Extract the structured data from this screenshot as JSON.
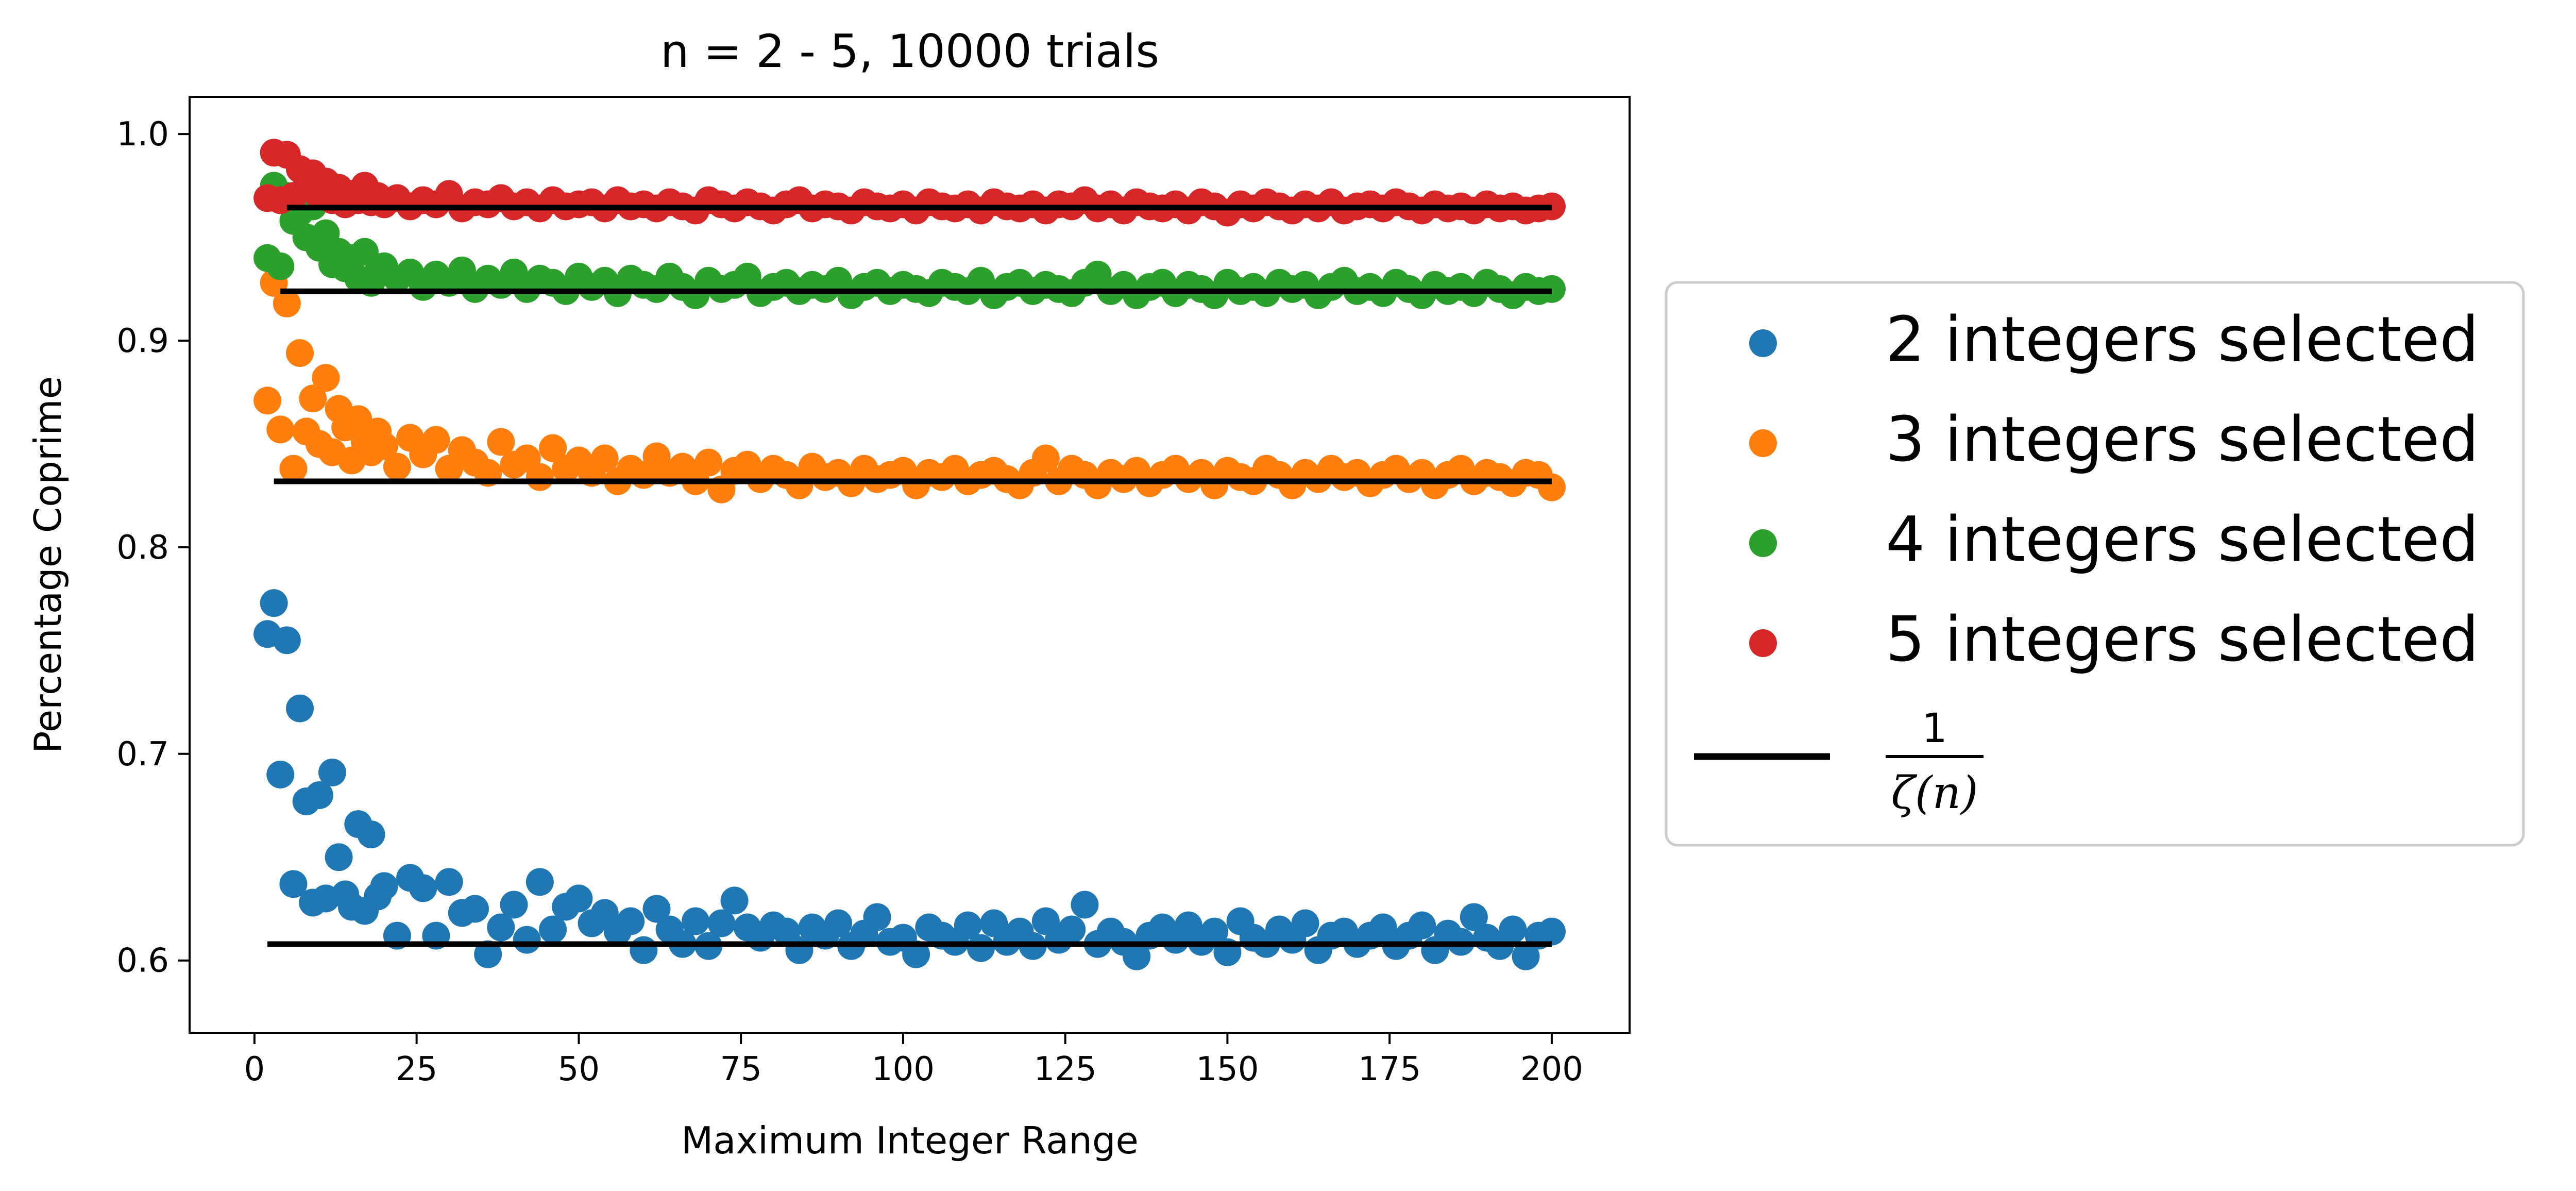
{
  "chart_data": {
    "type": "scatter",
    "title": "n = 2 - 5, 10000 trials",
    "xlabel": "Maximum Integer Range",
    "ylabel": "Percentage Coprime",
    "xlim": [
      -10,
      212
    ],
    "ylim": [
      0.565,
      1.018
    ],
    "xticks": [
      0,
      25,
      50,
      75,
      100,
      125,
      150,
      175,
      200
    ],
    "xtick_labels": [
      "0",
      "25",
      "50",
      "75",
      "100",
      "125",
      "150",
      "175",
      "200"
    ],
    "yticks": [
      0.6,
      0.7,
      0.8,
      0.9,
      1.0
    ],
    "ytick_labels": [
      "0.6",
      "0.7",
      "0.8",
      "0.9",
      "1.0"
    ],
    "grid": false,
    "legend_position": "outside-right",
    "series": [
      {
        "name": "2 integers selected",
        "color": "#1f77b4",
        "x": [
          2,
          3,
          4,
          5,
          6,
          7,
          8,
          9,
          10,
          11,
          12,
          13,
          14,
          15,
          16,
          17,
          18,
          19,
          20,
          22,
          24,
          26,
          28,
          30,
          32,
          34,
          36,
          38,
          40,
          42,
          44,
          46,
          48,
          50,
          52,
          54,
          56,
          58,
          60,
          62,
          64,
          66,
          68,
          70,
          72,
          74,
          76,
          78,
          80,
          82,
          84,
          86,
          88,
          90,
          92,
          94,
          96,
          98,
          100,
          102,
          104,
          106,
          108,
          110,
          112,
          114,
          116,
          118,
          120,
          122,
          124,
          126,
          128,
          130,
          132,
          134,
          136,
          138,
          140,
          142,
          144,
          146,
          148,
          150,
          152,
          154,
          156,
          158,
          160,
          162,
          164,
          166,
          168,
          170,
          172,
          174,
          176,
          178,
          180,
          182,
          184,
          186,
          188,
          190,
          192,
          194,
          196,
          198,
          200
        ],
        "y": [
          0.758,
          0.773,
          0.69,
          0.755,
          0.637,
          0.722,
          0.677,
          0.628,
          0.68,
          0.63,
          0.691,
          0.65,
          0.632,
          0.626,
          0.666,
          0.624,
          0.661,
          0.631,
          0.636,
          0.612,
          0.64,
          0.635,
          0.612,
          0.638,
          0.623,
          0.625,
          0.603,
          0.616,
          0.627,
          0.61,
          0.638,
          0.615,
          0.626,
          0.63,
          0.618,
          0.623,
          0.614,
          0.619,
          0.605,
          0.625,
          0.615,
          0.608,
          0.619,
          0.607,
          0.618,
          0.629,
          0.616,
          0.611,
          0.617,
          0.614,
          0.605,
          0.616,
          0.612,
          0.618,
          0.607,
          0.613,
          0.621,
          0.609,
          0.611,
          0.603,
          0.616,
          0.612,
          0.609,
          0.617,
          0.606,
          0.618,
          0.609,
          0.614,
          0.607,
          0.619,
          0.61,
          0.615,
          0.627,
          0.608,
          0.614,
          0.609,
          0.602,
          0.612,
          0.616,
          0.61,
          0.617,
          0.609,
          0.614,
          0.604,
          0.619,
          0.611,
          0.608,
          0.615,
          0.61,
          0.618,
          0.605,
          0.612,
          0.614,
          0.608,
          0.612,
          0.616,
          0.607,
          0.612,
          0.617,
          0.605,
          0.613,
          0.609,
          0.621,
          0.611,
          0.607,
          0.615,
          0.602,
          0.612,
          0.614
        ]
      },
      {
        "name": "3 integers selected",
        "color": "#ff7f0e",
        "x": [
          2,
          3,
          4,
          5,
          6,
          7,
          8,
          9,
          10,
          11,
          12,
          13,
          14,
          15,
          16,
          17,
          18,
          19,
          20,
          22,
          24,
          26,
          28,
          30,
          32,
          34,
          36,
          38,
          40,
          42,
          44,
          46,
          48,
          50,
          52,
          54,
          56,
          58,
          60,
          62,
          64,
          66,
          68,
          70,
          72,
          74,
          76,
          78,
          80,
          82,
          84,
          86,
          88,
          90,
          92,
          94,
          96,
          98,
          100,
          102,
          104,
          106,
          108,
          110,
          112,
          114,
          116,
          118,
          120,
          122,
          124,
          126,
          128,
          130,
          132,
          134,
          136,
          138,
          140,
          142,
          144,
          146,
          148,
          150,
          152,
          154,
          156,
          158,
          160,
          162,
          164,
          166,
          168,
          170,
          172,
          174,
          176,
          178,
          180,
          182,
          184,
          186,
          188,
          190,
          192,
          194,
          196,
          198,
          200
        ],
        "y": [
          0.871,
          0.928,
          0.857,
          0.918,
          0.838,
          0.894,
          0.856,
          0.872,
          0.85,
          0.882,
          0.846,
          0.867,
          0.858,
          0.842,
          0.862,
          0.851,
          0.846,
          0.856,
          0.849,
          0.839,
          0.853,
          0.845,
          0.852,
          0.838,
          0.847,
          0.841,
          0.836,
          0.851,
          0.84,
          0.843,
          0.834,
          0.848,
          0.838,
          0.842,
          0.836,
          0.843,
          0.832,
          0.838,
          0.835,
          0.844,
          0.836,
          0.839,
          0.832,
          0.841,
          0.828,
          0.837,
          0.84,
          0.833,
          0.838,
          0.835,
          0.83,
          0.839,
          0.834,
          0.836,
          0.831,
          0.838,
          0.833,
          0.835,
          0.837,
          0.83,
          0.836,
          0.834,
          0.838,
          0.832,
          0.835,
          0.837,
          0.833,
          0.83,
          0.836,
          0.843,
          0.832,
          0.838,
          0.835,
          0.83,
          0.836,
          0.833,
          0.837,
          0.831,
          0.835,
          0.838,
          0.833,
          0.836,
          0.83,
          0.837,
          0.834,
          0.832,
          0.838,
          0.835,
          0.83,
          0.836,
          0.833,
          0.838,
          0.834,
          0.836,
          0.831,
          0.835,
          0.838,
          0.833,
          0.836,
          0.83,
          0.835,
          0.838,
          0.832,
          0.836,
          0.834,
          0.831,
          0.836,
          0.835,
          0.829
        ]
      },
      {
        "name": "4 integers selected",
        "color": "#2ca02c",
        "x": [
          2,
          3,
          4,
          5,
          6,
          7,
          8,
          9,
          10,
          11,
          12,
          13,
          14,
          15,
          16,
          17,
          18,
          19,
          20,
          22,
          24,
          26,
          28,
          30,
          32,
          34,
          36,
          38,
          40,
          42,
          44,
          46,
          48,
          50,
          52,
          54,
          56,
          58,
          60,
          62,
          64,
          66,
          68,
          70,
          72,
          74,
          76,
          78,
          80,
          82,
          84,
          86,
          88,
          90,
          92,
          94,
          96,
          98,
          100,
          102,
          104,
          106,
          108,
          110,
          112,
          114,
          116,
          118,
          120,
          122,
          124,
          126,
          128,
          130,
          132,
          134,
          136,
          138,
          140,
          142,
          144,
          146,
          148,
          150,
          152,
          154,
          156,
          158,
          160,
          162,
          164,
          166,
          168,
          170,
          172,
          174,
          176,
          178,
          180,
          182,
          184,
          186,
          188,
          190,
          192,
          194,
          196,
          198,
          200
        ],
        "y": [
          0.94,
          0.975,
          0.936,
          0.97,
          0.958,
          0.962,
          0.95,
          0.965,
          0.945,
          0.952,
          0.937,
          0.943,
          0.935,
          0.94,
          0.93,
          0.943,
          0.928,
          0.933,
          0.936,
          0.93,
          0.933,
          0.926,
          0.932,
          0.928,
          0.934,
          0.925,
          0.93,
          0.927,
          0.933,
          0.925,
          0.93,
          0.928,
          0.924,
          0.931,
          0.926,
          0.929,
          0.923,
          0.93,
          0.927,
          0.925,
          0.931,
          0.926,
          0.922,
          0.929,
          0.925,
          0.927,
          0.931,
          0.923,
          0.926,
          0.928,
          0.924,
          0.927,
          0.925,
          0.929,
          0.922,
          0.926,
          0.928,
          0.924,
          0.927,
          0.925,
          0.923,
          0.928,
          0.926,
          0.924,
          0.929,
          0.922,
          0.926,
          0.928,
          0.924,
          0.927,
          0.925,
          0.923,
          0.928,
          0.932,
          0.924,
          0.927,
          0.922,
          0.926,
          0.928,
          0.923,
          0.927,
          0.925,
          0.922,
          0.928,
          0.924,
          0.926,
          0.923,
          0.928,
          0.925,
          0.927,
          0.922,
          0.926,
          0.929,
          0.924,
          0.926,
          0.923,
          0.928,
          0.925,
          0.922,
          0.927,
          0.924,
          0.926,
          0.923,
          0.928,
          0.925,
          0.922,
          0.926,
          0.924,
          0.925
        ]
      },
      {
        "name": "5 integers selected",
        "color": "#d62728",
        "x": [
          2,
          3,
          4,
          5,
          6,
          7,
          8,
          9,
          10,
          11,
          12,
          13,
          14,
          15,
          16,
          17,
          18,
          19,
          20,
          22,
          24,
          26,
          28,
          30,
          32,
          34,
          36,
          38,
          40,
          42,
          44,
          46,
          48,
          50,
          52,
          54,
          56,
          58,
          60,
          62,
          64,
          66,
          68,
          70,
          72,
          74,
          76,
          78,
          80,
          82,
          84,
          86,
          88,
          90,
          92,
          94,
          96,
          98,
          100,
          102,
          104,
          106,
          108,
          110,
          112,
          114,
          116,
          118,
          120,
          122,
          124,
          126,
          128,
          130,
          132,
          134,
          136,
          138,
          140,
          142,
          144,
          146,
          148,
          150,
          152,
          154,
          156,
          158,
          160,
          162,
          164,
          166,
          168,
          170,
          172,
          174,
          176,
          178,
          180,
          182,
          184,
          186,
          188,
          190,
          192,
          194,
          196,
          198,
          200
        ],
        "y": [
          0.969,
          0.991,
          0.968,
          0.99,
          0.97,
          0.983,
          0.975,
          0.981,
          0.97,
          0.977,
          0.968,
          0.974,
          0.966,
          0.971,
          0.968,
          0.975,
          0.967,
          0.97,
          0.966,
          0.969,
          0.965,
          0.968,
          0.966,
          0.971,
          0.964,
          0.967,
          0.966,
          0.969,
          0.965,
          0.967,
          0.964,
          0.968,
          0.965,
          0.966,
          0.967,
          0.964,
          0.968,
          0.965,
          0.966,
          0.964,
          0.967,
          0.965,
          0.963,
          0.968,
          0.966,
          0.964,
          0.967,
          0.965,
          0.963,
          0.966,
          0.968,
          0.964,
          0.966,
          0.965,
          0.963,
          0.967,
          0.965,
          0.964,
          0.966,
          0.963,
          0.967,
          0.965,
          0.964,
          0.966,
          0.963,
          0.967,
          0.965,
          0.964,
          0.966,
          0.963,
          0.966,
          0.965,
          0.968,
          0.964,
          0.966,
          0.963,
          0.967,
          0.965,
          0.964,
          0.966,
          0.963,
          0.967,
          0.965,
          0.962,
          0.966,
          0.964,
          0.967,
          0.965,
          0.963,
          0.966,
          0.964,
          0.967,
          0.963,
          0.965,
          0.966,
          0.964,
          0.967,
          0.965,
          0.963,
          0.966,
          0.964,
          0.965,
          0.963,
          0.966,
          0.964,
          0.965,
          0.963,
          0.964,
          0.965
        ]
      }
    ],
    "reference_lines": [
      {
        "n": 2,
        "x": [
          2,
          200
        ],
        "y": 0.6079
      },
      {
        "n": 3,
        "x": [
          3,
          200
        ],
        "y": 0.8319
      },
      {
        "n": 4,
        "x": [
          4,
          200
        ],
        "y": 0.9239
      },
      {
        "n": 5,
        "x": [
          5,
          200
        ],
        "y": 0.9644
      }
    ],
    "reference_line_color": "#000000",
    "legend": {
      "entries": [
        "2 integers selected",
        "3 integers selected",
        "4 integers selected",
        "5 integers selected"
      ],
      "line_label_numerator": "1",
      "line_label_denominator": "ζ(n)"
    }
  }
}
